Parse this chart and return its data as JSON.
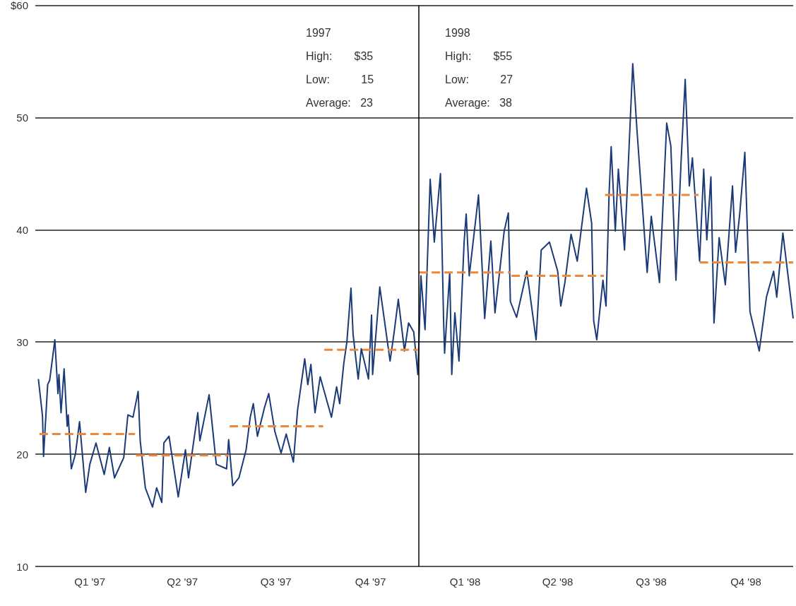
{
  "chart_data": {
    "type": "line",
    "marker": "none",
    "grid": "y",
    "xlim": [
      "1996-12-24",
      "1998-12-31"
    ],
    "xticks": [
      {
        "value": "1997-02-15",
        "label": "Q1 '97"
      },
      {
        "value": "1997-05-16",
        "label": "Q2 '97"
      },
      {
        "value": "1997-08-15",
        "label": "Q3 '97"
      },
      {
        "value": "1997-11-15",
        "label": "Q4 '97"
      },
      {
        "value": "1998-02-15",
        "label": "Q1 '98"
      },
      {
        "value": "1998-05-16",
        "label": "Q2 '98"
      },
      {
        "value": "1998-08-15",
        "label": "Q3 '98"
      },
      {
        "value": "1998-11-15",
        "label": "Q4 '98"
      }
    ],
    "ylim": [
      10,
      60
    ],
    "yticks": [
      10,
      20,
      30,
      40,
      50,
      {
        "value": 60,
        "label": "$60"
      }
    ],
    "ref_lines": [
      {
        "axis": "x",
        "value": "1998-01-01",
        "color": "#000000",
        "line_style": "solid"
      }
    ],
    "annotations": [
      "1997\nHigh:       $35\nLow:          15\nAverage:   23",
      "1998\nHigh:       $55\nLow:          27\nAverage:   38"
    ],
    "series": [
      {
        "color": "#1a3a78",
        "line_style": "solid",
        "x": [
          "1996-12-27",
          "1996-12-31",
          "1997-01-01",
          "1997-01-05",
          "1997-01-07",
          "1997-01-12",
          "1997-01-15",
          "1997-01-16",
          "1997-01-18",
          "1997-01-21",
          "1997-01-24",
          "1997-01-25",
          "1997-01-28",
          "1997-02-01",
          "1997-02-05",
          "1997-02-11",
          "1997-02-15",
          "1997-02-21",
          "1997-03-01",
          "1997-03-06",
          "1997-03-11",
          "1997-03-20",
          "1997-03-24",
          "1997-03-29",
          "1997-04-03",
          "1997-04-05",
          "1997-04-10",
          "1997-04-17",
          "1997-04-21",
          "1997-04-26",
          "1997-04-28",
          "1997-05-03",
          "1997-05-12",
          "1997-05-19",
          "1997-05-22",
          "1997-05-31",
          "1997-06-02",
          "1997-06-11",
          "1997-06-18",
          "1997-06-28",
          "1997-06-30",
          "1997-07-04",
          "1997-07-10",
          "1997-07-17",
          "1997-07-21",
          "1997-07-24",
          "1997-07-28",
          "1997-08-04",
          "1997-08-08",
          "1997-08-14",
          "1997-08-20",
          "1997-08-25",
          "1997-09-01",
          "1997-09-05",
          "1997-09-12",
          "1997-09-15",
          "1997-09-18",
          "1997-09-22",
          "1997-09-27",
          "1997-10-08",
          "1997-10-13",
          "1997-10-16",
          "1997-10-20",
          "1997-10-23",
          "1997-10-27",
          "1997-10-29",
          "1997-11-03",
          "1997-11-06",
          "1997-11-13",
          "1997-11-16",
          "1997-11-17",
          "1997-11-24",
          "1997-12-04",
          "1997-12-08",
          "1997-12-12",
          "1997-12-18",
          "1997-12-22",
          "1997-12-27",
          "1997-12-31",
          "1998-01-02",
          "1998-01-03",
          "1998-01-07",
          "1998-01-12",
          "1998-01-16",
          "1998-01-22",
          "1998-01-25",
          "1998-01-26",
          "1998-01-31",
          "1998-02-02",
          "1998-02-05",
          "1998-02-09",
          "1998-02-14",
          "1998-02-16",
          "1998-02-19",
          "1998-02-28",
          "1998-03-06",
          "1998-03-12",
          "1998-03-16",
          "1998-03-25",
          "1998-03-29",
          "1998-03-31",
          "1998-04-06",
          "1998-04-16",
          "1998-04-25",
          "1998-04-30",
          "1998-05-08",
          "1998-05-16",
          "1998-05-19",
          "1998-05-23",
          "1998-05-29",
          "1998-06-04",
          "1998-06-13",
          "1998-06-18",
          "1998-06-20",
          "1998-06-23",
          "1998-06-29",
          "1998-07-02",
          "1998-07-05",
          "1998-07-07",
          "1998-07-11",
          "1998-07-14",
          "1998-07-20",
          "1998-07-28",
          "1998-08-01",
          "1998-08-11",
          "1998-08-15",
          "1998-08-23",
          "1998-08-30",
          "1998-09-03",
          "1998-09-08",
          "1998-09-13",
          "1998-09-17",
          "1998-09-21",
          "1998-09-24",
          "1998-10-01",
          "1998-10-05",
          "1998-10-08",
          "1998-10-12",
          "1998-10-15",
          "1998-10-20",
          "1998-10-26",
          "1998-11-02",
          "1998-11-05",
          "1998-11-09",
          "1998-11-14",
          "1998-11-19",
          "1998-11-28",
          "1998-12-05",
          "1998-12-12",
          "1998-12-15",
          "1998-12-21",
          "1998-12-31"
        ],
        "values": [
          26.7,
          23.4,
          19.8,
          26.2,
          26.6,
          30.2,
          25.4,
          27.1,
          23.7,
          27.6,
          22.5,
          23.5,
          18.7,
          20,
          22.9,
          16.6,
          19.1,
          21,
          18.2,
          20.6,
          17.9,
          19.7,
          23.5,
          23.3,
          25.6,
          21.2,
          17,
          15.3,
          17,
          15.7,
          21,
          21.6,
          16.2,
          20.4,
          17.9,
          23.7,
          21.2,
          25.3,
          19.1,
          18.7,
          21.3,
          17.2,
          17.9,
          20.4,
          23.3,
          24.5,
          21.6,
          24.2,
          25.4,
          22,
          20.1,
          21.8,
          19.3,
          23.9,
          28.5,
          26.2,
          28,
          23.7,
          26.9,
          23.3,
          26,
          24.5,
          28.1,
          30,
          34.8,
          30.7,
          26.7,
          29.4,
          26.7,
          32.4,
          27.1,
          34.9,
          28.3,
          30.9,
          33.8,
          29.2,
          31.7,
          30.9,
          27.1,
          32.7,
          35.9,
          31.1,
          44.5,
          38.9,
          45,
          32.1,
          29,
          36.2,
          27.1,
          32.6,
          28.3,
          38.9,
          41.4,
          35.9,
          43.1,
          32.1,
          39,
          32.6,
          39.9,
          41.5,
          33.6,
          32.2,
          36.3,
          30.2,
          38.2,
          38.9,
          36.3,
          33.2,
          35.3,
          39.6,
          37.2,
          43.7,
          40.6,
          31.9,
          30.2,
          35.5,
          33.2,
          43.3,
          47.4,
          39.9,
          45.4,
          38.2,
          54.8,
          49,
          36.2,
          41.2,
          35.3,
          49.5,
          47.5,
          35.5,
          46.1,
          53.4,
          43.9,
          46.4,
          37.2,
          45.4,
          39.1,
          44.7,
          31.7,
          39.3,
          35.1,
          43.9,
          38,
          41.4,
          46.9,
          32.7,
          29.2,
          34,
          36.3,
          34,
          39.7,
          32.1
        ]
      },
      {
        "color": "#f0883a",
        "line_style": "dashed",
        "x": [
          "1996-12-28",
          "1997-03-31"
        ],
        "values": [
          21.8,
          21.8
        ]
      },
      {
        "color": "#f0883a",
        "line_style": "dashed",
        "x": [
          "1997-04-01",
          "1997-06-30"
        ],
        "values": [
          19.9,
          19.9
        ]
      },
      {
        "color": "#f0883a",
        "line_style": "dashed",
        "x": [
          "1997-07-01",
          "1997-09-30"
        ],
        "values": [
          22.5,
          22.5
        ]
      },
      {
        "color": "#f0883a",
        "line_style": "dashed",
        "x": [
          "1997-10-01",
          "1997-12-31"
        ],
        "values": [
          29.3,
          29.3
        ]
      },
      {
        "color": "#f0883a",
        "line_style": "dashed",
        "x": [
          "1998-01-01",
          "1998-03-31"
        ],
        "values": [
          36.2,
          36.2
        ]
      },
      {
        "color": "#f0883a",
        "line_style": "dashed",
        "x": [
          "1998-04-01",
          "1998-06-30"
        ],
        "values": [
          35.9,
          35.9
        ]
      },
      {
        "color": "#f0883a",
        "line_style": "dashed",
        "x": [
          "1998-07-01",
          "1998-09-30"
        ],
        "values": [
          43.1,
          43.1
        ]
      },
      {
        "color": "#f0883a",
        "line_style": "dashed",
        "x": [
          "1998-10-01",
          "1998-12-31"
        ],
        "values": [
          37.1,
          37.1
        ]
      }
    ]
  }
}
